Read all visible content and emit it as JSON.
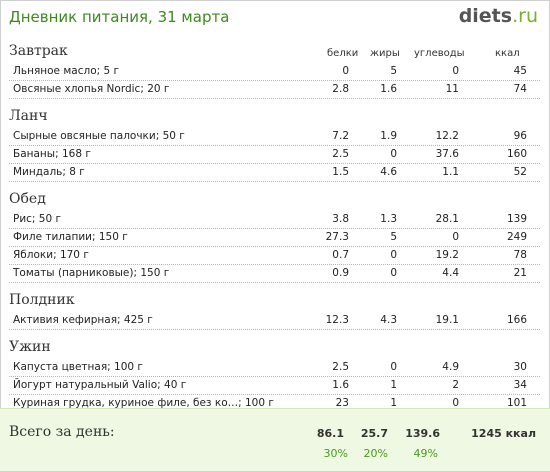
{
  "header": {
    "title": "Дневник питания, 31 марта",
    "logo_main": "diets",
    "logo_suffix": ".ru"
  },
  "columns": {
    "protein": "белки",
    "fat": "жиры",
    "carbs": "углеводы",
    "kcal": "ккал"
  },
  "meals": [
    {
      "title": "Завтрак",
      "items": [
        {
          "name": "Льняное масло; 5 г",
          "protein": "0",
          "fat": "5",
          "carbs": "0",
          "kcal": "45"
        },
        {
          "name": "Овсяные хлопья Nordic; 20 г",
          "protein": "2.8",
          "fat": "1.6",
          "carbs": "11",
          "kcal": "74"
        }
      ]
    },
    {
      "title": "Ланч",
      "items": [
        {
          "name": "Сырные овсяные палочки; 50 г",
          "protein": "7.2",
          "fat": "1.9",
          "carbs": "12.2",
          "kcal": "96"
        },
        {
          "name": "Бананы; 168 г",
          "protein": "2.5",
          "fat": "0",
          "carbs": "37.6",
          "kcal": "160"
        },
        {
          "name": "Миндаль; 8 г",
          "protein": "1.5",
          "fat": "4.6",
          "carbs": "1.1",
          "kcal": "52"
        }
      ]
    },
    {
      "title": "Обед",
      "items": [
        {
          "name": "Рис; 50 г",
          "protein": "3.8",
          "fat": "1.3",
          "carbs": "28.1",
          "kcal": "139"
        },
        {
          "name": "Филе тилапии; 150 г",
          "protein": "27.3",
          "fat": "5",
          "carbs": "0",
          "kcal": "249"
        },
        {
          "name": "Яблоки; 170 г",
          "protein": "0.7",
          "fat": "0",
          "carbs": "19.2",
          "kcal": "78"
        },
        {
          "name": "Томаты (парниковые); 150 г",
          "protein": "0.9",
          "fat": "0",
          "carbs": "4.4",
          "kcal": "21"
        }
      ]
    },
    {
      "title": "Полдник",
      "items": [
        {
          "name": "Активия кефирная; 425 г",
          "protein": "12.3",
          "fat": "4.3",
          "carbs": "19.1",
          "kcal": "166"
        }
      ]
    },
    {
      "title": "Ужин",
      "items": [
        {
          "name": "Капуста цветная; 100 г",
          "protein": "2.5",
          "fat": "0",
          "carbs": "4.9",
          "kcal": "30"
        },
        {
          "name": "Йогурт натуральный Valio; 40 г",
          "protein": "1.6",
          "fat": "1",
          "carbs": "2",
          "kcal": "34"
        },
        {
          "name": "Куриная грудка, куриное филе, без ко…; 100 г",
          "protein": "23",
          "fat": "1",
          "carbs": "0",
          "kcal": "101"
        }
      ]
    }
  ],
  "totals": {
    "label": "Всего за день:",
    "protein": "86.1",
    "fat": "25.7",
    "carbs": "139.6",
    "kcal": "1245 ккал",
    "protein_pct": "30%",
    "fat_pct": "20%",
    "carbs_pct": "49%"
  }
}
